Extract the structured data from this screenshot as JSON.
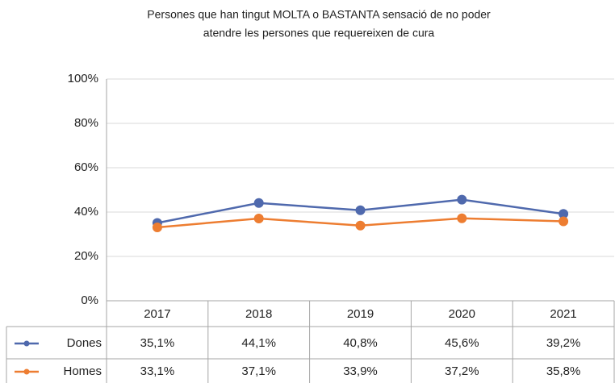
{
  "chart_data": {
    "type": "line",
    "title": [
      "Persones que han tingut MOLTA o BASTANTA sensació de no poder",
      "atendre les persones que requereixen de cura"
    ],
    "categories": [
      "2017",
      "2018",
      "2019",
      "2020",
      "2021"
    ],
    "series": [
      {
        "name": "Dones",
        "color": "#4f69ad",
        "values": [
          35.1,
          44.1,
          40.8,
          45.6,
          39.2
        ],
        "value_labels": [
          "35,1%",
          "44,1%",
          "40,8%",
          "45,6%",
          "39,2%"
        ]
      },
      {
        "name": "Homes",
        "color": "#ed7d31",
        "values": [
          33.1,
          37.1,
          33.9,
          37.2,
          35.8
        ],
        "value_labels": [
          "33,1%",
          "37,1%",
          "33,9%",
          "37,2%",
          "35,8%"
        ]
      }
    ],
    "ylim": [
      0,
      100
    ],
    "yticks": [
      {
        "value": 0,
        "label": "0%"
      },
      {
        "value": 20,
        "label": "20%"
      },
      {
        "value": 40,
        "label": "40%"
      },
      {
        "value": 60,
        "label": "60%"
      },
      {
        "value": 80,
        "label": "80%"
      },
      {
        "value": 100,
        "label": "100%"
      }
    ],
    "grid": true
  }
}
